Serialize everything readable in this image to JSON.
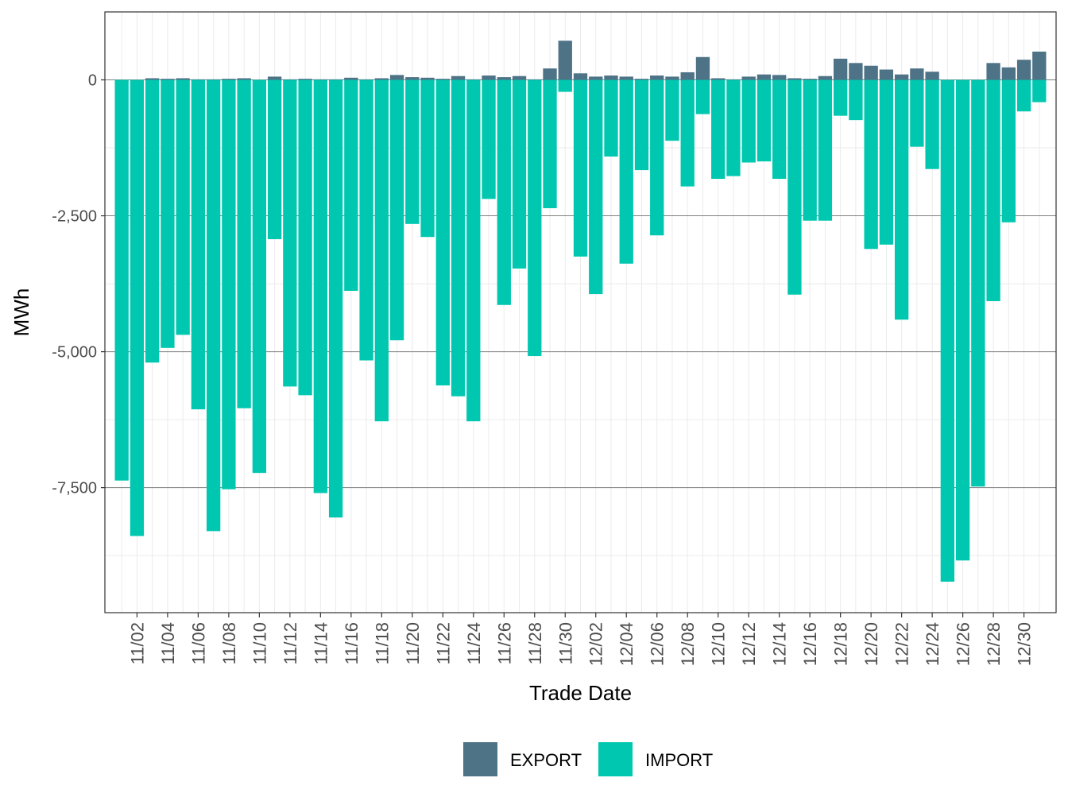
{
  "colors": {
    "export": "#4e7286",
    "import": "#00c8b0",
    "grid_major": "#7f7f7f",
    "grid_minor": "#ebebeb",
    "panel_border": "#333333",
    "tick_text": "#4d4d4d"
  },
  "chart_data": {
    "type": "bar",
    "stacked": true,
    "title": "",
    "xlabel": "Trade Date",
    "ylabel": "MWh",
    "ylim": [
      -9800,
      1250
    ],
    "y_ticks": [
      0,
      -2500,
      -5000,
      -7500
    ],
    "y_tick_labels": [
      "0",
      "-2,500",
      "-5,000",
      "-7,500"
    ],
    "legend_position": "bottom",
    "categories": [
      "11/01",
      "11/02",
      "11/03",
      "11/04",
      "11/05",
      "11/06",
      "11/07",
      "11/08",
      "11/09",
      "11/10",
      "11/11",
      "11/12",
      "11/13",
      "11/14",
      "11/15",
      "11/16",
      "11/17",
      "11/18",
      "11/19",
      "11/20",
      "11/21",
      "11/22",
      "11/23",
      "11/24",
      "11/25",
      "11/26",
      "11/27",
      "11/28",
      "11/29",
      "11/30",
      "12/01",
      "12/02",
      "12/03",
      "12/04",
      "12/05",
      "12/06",
      "12/07",
      "12/08",
      "12/09",
      "12/10",
      "12/11",
      "12/12",
      "12/13",
      "12/14",
      "12/15",
      "12/16",
      "12/17",
      "12/18",
      "12/19",
      "12/20",
      "12/21",
      "12/22",
      "12/23",
      "12/24",
      "12/25",
      "12/26",
      "12/27",
      "12/28",
      "12/29",
      "12/30",
      "12/31"
    ],
    "x_tick_labels": [
      "11/02",
      "11/04",
      "11/06",
      "11/08",
      "11/10",
      "11/12",
      "11/14",
      "11/16",
      "11/18",
      "11/20",
      "11/22",
      "11/24",
      "11/26",
      "11/28",
      "11/30",
      "12/02",
      "12/04",
      "12/06",
      "12/08",
      "12/10",
      "12/12",
      "12/14",
      "12/16",
      "12/18",
      "12/20",
      "12/22",
      "12/24",
      "12/26",
      "12/28",
      "12/30"
    ],
    "series": [
      {
        "name": "EXPORT",
        "values": [
          0,
          0,
          30,
          20,
          30,
          10,
          10,
          20,
          30,
          0,
          60,
          10,
          20,
          10,
          10,
          40,
          10,
          30,
          90,
          50,
          40,
          20,
          70,
          10,
          80,
          50,
          70,
          10,
          210,
          720,
          120,
          60,
          80,
          60,
          20,
          80,
          60,
          140,
          420,
          30,
          10,
          60,
          100,
          90,
          30,
          20,
          70,
          390,
          310,
          260,
          190,
          100,
          210,
          150,
          0,
          0,
          0,
          310,
          230,
          370,
          520
        ]
      },
      {
        "name": "IMPORT",
        "values": [
          -7370,
          -8390,
          -5200,
          -4930,
          -4690,
          -6060,
          -8300,
          -7530,
          -6040,
          -7230,
          -2930,
          -5640,
          -5800,
          -7600,
          -8050,
          -3880,
          -5160,
          -6280,
          -4790,
          -2650,
          -2890,
          -5620,
          -5820,
          -6280,
          -2190,
          -4140,
          -3470,
          -5080,
          -2360,
          -220,
          -3250,
          -3940,
          -1410,
          -3380,
          -1660,
          -2860,
          -1120,
          -1960,
          -630,
          -1820,
          -1770,
          -1520,
          -1500,
          -1820,
          -3950,
          -2590,
          -2590,
          -660,
          -740,
          -3110,
          -3030,
          -4410,
          -1230,
          -1640,
          -9230,
          -8840,
          -7480,
          -4070,
          -2620,
          -580,
          -410
        ]
      }
    ]
  }
}
